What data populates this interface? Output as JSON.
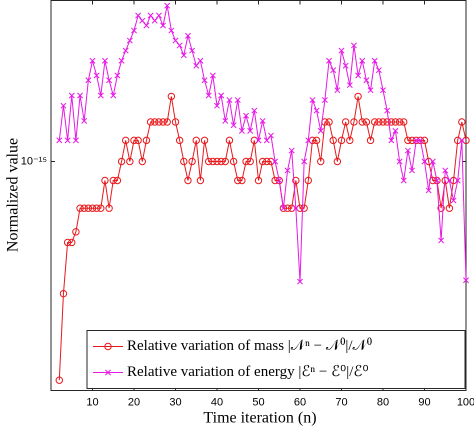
{
  "chart_data": {
    "type": "line",
    "xlabel": "Time iteration (n)",
    "ylabel": "Normalized value",
    "yscale": "log",
    "legend": "lower right",
    "grid": false,
    "xlim": [
      0,
      100
    ],
    "ylim": [
      2e-16,
      3.1e-15
    ],
    "xticks": [
      10,
      20,
      30,
      40,
      50,
      60,
      70,
      80,
      90,
      100
    ],
    "yticks": [
      {
        "value": 1e-15,
        "label": "10⁻¹⁵"
      }
    ],
    "x": [
      2,
      3,
      4,
      5,
      6,
      7,
      8,
      9,
      10,
      11,
      12,
      13,
      14,
      15,
      16,
      17,
      18,
      19,
      20,
      21,
      22,
      23,
      24,
      25,
      26,
      27,
      28,
      29,
      30,
      31,
      32,
      33,
      34,
      35,
      36,
      37,
      38,
      39,
      40,
      41,
      42,
      43,
      44,
      45,
      46,
      47,
      48,
      49,
      50,
      51,
      52,
      53,
      54,
      55,
      56,
      57,
      58,
      59,
      60,
      61,
      62,
      63,
      64,
      65,
      66,
      67,
      68,
      69,
      70,
      71,
      72,
      73,
      74,
      75,
      76,
      77,
      78,
      79,
      80,
      81,
      82,
      83,
      84,
      85,
      86,
      87,
      88,
      89,
      90,
      91,
      92,
      93,
      94,
      95,
      96,
      97,
      98,
      99,
      100
    ],
    "series": [
      {
        "name": "Relative variation of mass |𝒩ⁿ − 𝒩⁰|/𝒩⁰",
        "color": "#e8191c",
        "marker": "circle",
        "values": [
          2.15e-16,
          3.95e-16,
          5.66e-16,
          5.66e-16,
          6.1e-16,
          7.2e-16,
          7.2e-16,
          7.2e-16,
          7.2e-16,
          7.2e-16,
          7.2e-16,
          8.75e-16,
          7.2e-16,
          8.75e-16,
          8.75e-16,
          1e-15,
          1.16e-15,
          1e-15,
          1.16e-15,
          1.16e-15,
          1e-15,
          1.16e-15,
          1.32e-15,
          1.32e-15,
          1.32e-15,
          1.32e-15,
          1.32e-15,
          1.58e-15,
          1.32e-15,
          1.16e-15,
          1e-15,
          8.75e-16,
          1e-15,
          1.16e-15,
          8.75e-16,
          1.16e-15,
          1e-15,
          1e-15,
          1e-15,
          1e-15,
          1e-15,
          1.16e-15,
          1e-15,
          8.75e-16,
          8.75e-16,
          1e-15,
          1e-15,
          1.16e-15,
          8.75e-16,
          1e-15,
          1e-15,
          1e-15,
          8.75e-16,
          8.75e-16,
          7.2e-16,
          7.2e-16,
          7.2e-16,
          8.75e-16,
          7.2e-16,
          7.2e-16,
          8.75e-16,
          1.16e-15,
          1.16e-15,
          1e-15,
          1.32e-15,
          1.32e-15,
          1.16e-15,
          1e-15,
          1.16e-15,
          1.32e-15,
          1.16e-15,
          1.32e-15,
          1.58e-15,
          1.32e-15,
          1.32e-15,
          1.16e-15,
          1.32e-15,
          1.32e-15,
          1.32e-15,
          1.32e-15,
          1.32e-15,
          1.32e-15,
          1.32e-15,
          1.32e-15,
          1.16e-15,
          1.16e-15,
          1.16e-15,
          1.16e-15,
          1.16e-15,
          1e-15,
          8.75e-16,
          8.75e-16,
          7.2e-16,
          8.75e-16,
          7.2e-16,
          8.75e-16,
          1.16e-15,
          1.32e-15,
          1.16e-15
        ]
      },
      {
        "name": "Relative variation of energy |ℰⁿ − ℰ⁰|/ℰ⁰",
        "color": "#e619e6",
        "marker": "x",
        "values": [
          1.16e-15,
          1.48e-15,
          1.16e-15,
          1.59e-15,
          1.16e-15,
          1.59e-15,
          1.33e-15,
          1.77e-15,
          2.03e-15,
          1.83e-15,
          1.59e-15,
          2.03e-15,
          1.77e-15,
          1.59e-15,
          1.83e-15,
          2.03e-15,
          2.18e-15,
          2.34e-15,
          2.51e-15,
          2.79e-15,
          2.69e-15,
          2.6e-15,
          2.79e-15,
          2.69e-15,
          2.79e-15,
          2.6e-15,
          2.99e-15,
          2.51e-15,
          2.34e-15,
          2.26e-15,
          2.11e-15,
          2.42e-15,
          2.18e-15,
          1.96e-15,
          2.03e-15,
          1.77e-15,
          1.59e-15,
          1.83e-15,
          1.48e-15,
          1.59e-15,
          1.33e-15,
          1.54e-15,
          1.29e-15,
          1.54e-15,
          1.24e-15,
          1.38e-15,
          1.24e-15,
          1.43e-15,
          1.16e-15,
          1.33e-15,
          1.16e-15,
          1.2e-15,
          1e-15,
          8.75e-16,
          7.2e-16,
          9.39e-16,
          1.08e-15,
          7.2e-16,
          4.3e-16,
          1e-15,
          1.16e-15,
          1.54e-15,
          1.43e-15,
          1.24e-15,
          1.54e-15,
          2.03e-15,
          1.9e-15,
          1.65e-15,
          2.18e-15,
          1.96e-15,
          1.71e-15,
          2.26e-15,
          1.83e-15,
          2.03e-15,
          1.77e-15,
          1.65e-15,
          2.03e-15,
          1.9e-15,
          1.65e-15,
          1.43e-15,
          1.16e-15,
          1.24e-15,
          1e-15,
          8.75e-16,
          1.08e-15,
          9.39e-16,
          1.16e-15,
          1.16e-15,
          1e-15,
          8.16e-16,
          1e-15,
          8.75e-16,
          5.74e-16,
          9.39e-16,
          8.75e-16,
          7.6e-16,
          8.75e-16,
          1.16e-15,
          4.34e-16
        ]
      }
    ]
  }
}
